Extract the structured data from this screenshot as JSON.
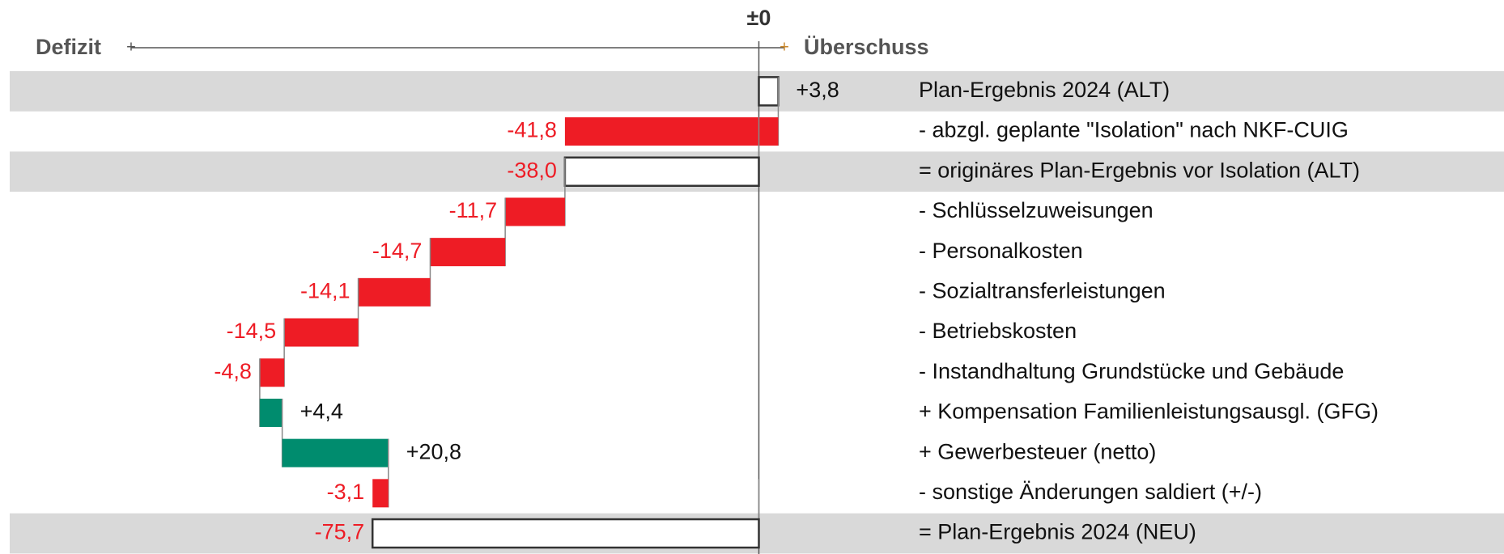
{
  "chart_data": {
    "type": "waterfall",
    "x_left_label": "Defizit",
    "x_right_label": "Überschuss",
    "categories": [
      "Plan-Ergebnis 2024 (ALT)",
      "- abzgl. geplante \"Isolation\" nach NKF-CUIG",
      "= originäres Plan-Ergebnis vor Isolation (ALT)",
      "- Schlüsselzuweisungen",
      "- Personalkosten",
      "- Sozialtransferleistungen",
      "- Betriebskosten",
      "- Instandhaltung Grundstücke und Gebäude",
      "+ Kompensation Familienleistungsausgl. (GFG)",
      "+ Gewerbesteuer (netto)",
      "- sonstige Änderungen saldiert (+/-)",
      "= Plan-Ergebnis 2024 (NEU)"
    ],
    "values": [
      3.8,
      -41.8,
      -38.0,
      -11.7,
      -14.7,
      -14.1,
      -14.5,
      -4.8,
      4.4,
      20.8,
      -3.1,
      -75.7
    ],
    "value_labels": [
      "+3,8",
      "-41,8",
      "-38,0",
      "-11,7",
      "-14,7",
      "-14,1",
      "-14,5",
      "-4,8",
      "+4,4",
      "+20,8",
      "-3,1",
      "-75,7"
    ],
    "total_indices": [
      0,
      2,
      11
    ],
    "xlim": [
      -123,
      5
    ],
    "xticks": [
      {
        "value": 0,
        "label": "±0"
      }
    ],
    "colors": {
      "decrease": "#ee1c25",
      "increase": "#008c6e",
      "total": "#ffffff"
    }
  }
}
